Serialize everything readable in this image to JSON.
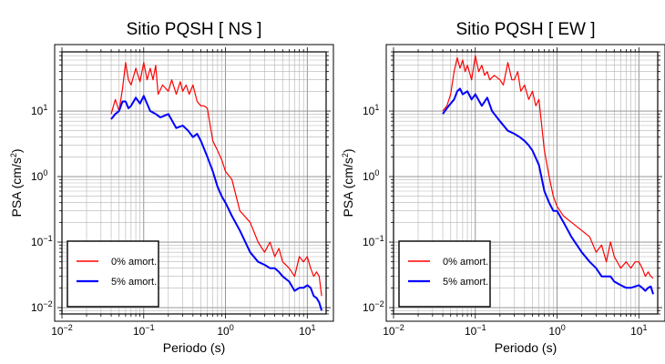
{
  "chart_data": [
    {
      "type": "line",
      "title": "Sitio PQSH [ NS ]",
      "xlabel": "Periodo (s)",
      "ylabel_parts": [
        "PSA (cm/s",
        "2",
        ")"
      ],
      "xscale": "log",
      "yscale": "log",
      "xlim": [
        0.01,
        17
      ],
      "ylim": [
        0.008,
        80
      ],
      "grid": true,
      "legend": "bottom-left",
      "x_ticks": [
        {
          "base": "10",
          "exp": "−2"
        },
        {
          "base": "10",
          "exp": "−1"
        },
        {
          "base": "10",
          "exp": "0"
        },
        {
          "base": "10",
          "exp": "1"
        }
      ],
      "y_ticks": [
        {
          "base": "10",
          "exp": "−2"
        },
        {
          "base": "10",
          "exp": "−1"
        },
        {
          "base": "10",
          "exp": "0"
        },
        {
          "base": "10",
          "exp": "1"
        }
      ],
      "series": [
        {
          "name": "0% amort.",
          "color": "#ff0000",
          "x": [
            0.04,
            0.045,
            0.05,
            0.055,
            0.06,
            0.065,
            0.07,
            0.08,
            0.09,
            0.1,
            0.11,
            0.12,
            0.13,
            0.14,
            0.15,
            0.17,
            0.2,
            0.22,
            0.25,
            0.28,
            0.3,
            0.33,
            0.36,
            0.4,
            0.45,
            0.5,
            0.55,
            0.6,
            0.7,
            0.8,
            0.9,
            1.0,
            1.2,
            1.5,
            2,
            2.5,
            3,
            3.5,
            4,
            4.5,
            5,
            6,
            7,
            8,
            9,
            10,
            11,
            12,
            13,
            14,
            15
          ],
          "values": [
            9,
            15,
            10,
            22,
            55,
            30,
            25,
            45,
            28,
            55,
            30,
            45,
            30,
            50,
            18,
            25,
            20,
            30,
            18,
            28,
            20,
            25,
            18,
            25,
            14,
            12,
            12,
            11,
            3.5,
            2.5,
            1.8,
            1.2,
            0.9,
            0.3,
            0.2,
            0.1,
            0.07,
            0.1,
            0.06,
            0.08,
            0.05,
            0.04,
            0.03,
            0.06,
            0.05,
            0.06,
            0.04,
            0.03,
            0.035,
            0.03,
            0.015
          ]
        },
        {
          "name": "5% amort.",
          "color": "#0000ff",
          "x": [
            0.04,
            0.045,
            0.05,
            0.055,
            0.06,
            0.065,
            0.07,
            0.08,
            0.09,
            0.1,
            0.12,
            0.14,
            0.16,
            0.2,
            0.25,
            0.3,
            0.35,
            0.4,
            0.45,
            0.5,
            0.6,
            0.7,
            0.8,
            0.9,
            1.0,
            1.2,
            1.5,
            2,
            2.5,
            3,
            3.5,
            4,
            4.5,
            5,
            6,
            7,
            8,
            9,
            10,
            11,
            12,
            13,
            14,
            15
          ],
          "values": [
            7.5,
            9,
            10,
            14,
            14,
            11,
            12,
            16,
            13,
            17,
            10,
            9,
            8,
            9,
            5.5,
            6,
            5,
            4,
            4.5,
            3.5,
            2,
            1.2,
            0.7,
            0.5,
            0.4,
            0.25,
            0.15,
            0.07,
            0.05,
            0.045,
            0.04,
            0.04,
            0.035,
            0.03,
            0.025,
            0.018,
            0.02,
            0.02,
            0.022,
            0.02,
            0.015,
            0.014,
            0.012,
            0.009
          ]
        }
      ]
    },
    {
      "type": "line",
      "title": "Sitio PQSH [ EW ]",
      "xlabel": "Periodo (s)",
      "ylabel_parts": [
        "PSA (cm/s",
        "2",
        ")"
      ],
      "xscale": "log",
      "yscale": "log",
      "xlim": [
        0.01,
        17
      ],
      "ylim": [
        0.008,
        80
      ],
      "grid": true,
      "legend": "bottom-left",
      "x_ticks": [
        {
          "base": "10",
          "exp": "−2"
        },
        {
          "base": "10",
          "exp": "−1"
        },
        {
          "base": "10",
          "exp": "0"
        },
        {
          "base": "10",
          "exp": "1"
        }
      ],
      "y_ticks": [
        {
          "base": "10",
          "exp": "−2"
        },
        {
          "base": "10",
          "exp": "−1"
        },
        {
          "base": "10",
          "exp": "0"
        },
        {
          "base": "10",
          "exp": "1"
        }
      ],
      "series": [
        {
          "name": "0% amort.",
          "color": "#ff0000",
          "x": [
            0.04,
            0.045,
            0.05,
            0.055,
            0.06,
            0.065,
            0.07,
            0.075,
            0.08,
            0.09,
            0.1,
            0.11,
            0.12,
            0.13,
            0.14,
            0.15,
            0.17,
            0.2,
            0.22,
            0.25,
            0.28,
            0.3,
            0.33,
            0.36,
            0.4,
            0.45,
            0.5,
            0.55,
            0.6,
            0.7,
            0.8,
            0.9,
            1.0,
            1.2,
            1.5,
            2,
            2.5,
            3,
            3.5,
            4,
            4.5,
            5,
            6,
            7,
            8,
            9,
            10,
            11,
            12,
            13,
            14,
            15
          ],
          "values": [
            10,
            12,
            18,
            40,
            65,
            45,
            60,
            40,
            50,
            30,
            70,
            40,
            50,
            35,
            40,
            30,
            35,
            30,
            25,
            55,
            30,
            30,
            40,
            20,
            25,
            15,
            20,
            12,
            15,
            2.5,
            1.0,
            0.5,
            0.35,
            0.25,
            0.2,
            0.15,
            0.12,
            0.07,
            0.09,
            0.05,
            0.1,
            0.06,
            0.04,
            0.05,
            0.04,
            0.05,
            0.05,
            0.04,
            0.03,
            0.035,
            0.03,
            0.028
          ]
        },
        {
          "name": "5% amort.",
          "color": "#0000ff",
          "x": [
            0.04,
            0.045,
            0.05,
            0.055,
            0.06,
            0.065,
            0.07,
            0.08,
            0.09,
            0.1,
            0.12,
            0.14,
            0.16,
            0.2,
            0.25,
            0.3,
            0.35,
            0.4,
            0.45,
            0.5,
            0.6,
            0.7,
            0.8,
            0.9,
            1.0,
            1.2,
            1.5,
            2,
            2.5,
            3,
            3.5,
            4,
            4.5,
            5,
            6,
            7,
            8,
            9,
            10,
            11,
            12,
            13,
            14,
            15
          ],
          "values": [
            9,
            11,
            13,
            15,
            20,
            22,
            18,
            20,
            15,
            18,
            12,
            16,
            10,
            7,
            5,
            4.5,
            4,
            3.5,
            3,
            2.5,
            1.5,
            0.6,
            0.4,
            0.3,
            0.3,
            0.2,
            0.12,
            0.07,
            0.05,
            0.04,
            0.03,
            0.03,
            0.03,
            0.025,
            0.022,
            0.02,
            0.02,
            0.021,
            0.022,
            0.02,
            0.018,
            0.02,
            0.021,
            0.016
          ]
        }
      ]
    }
  ]
}
